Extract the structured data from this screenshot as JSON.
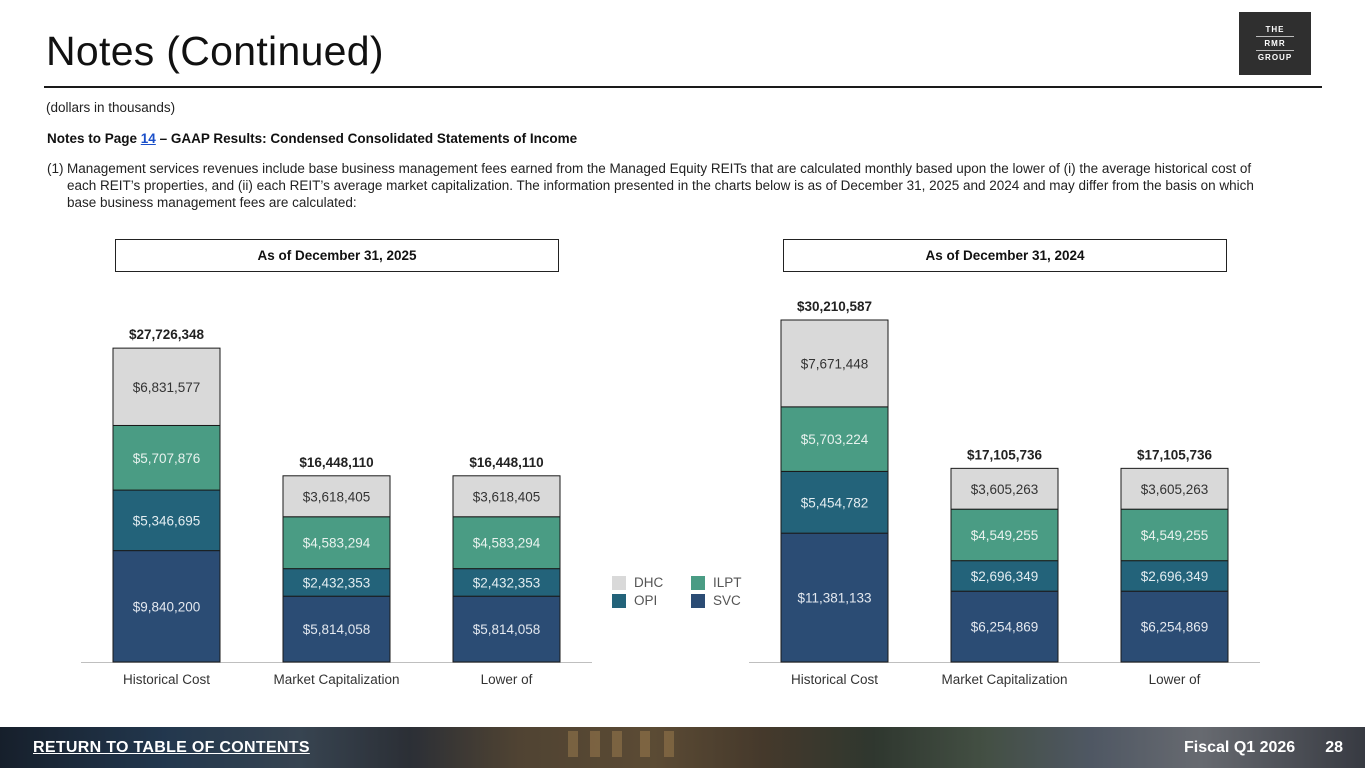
{
  "page": {
    "title": "Notes (Continued)",
    "subtitle": "(dollars in thousands)",
    "notes_heading_prefix": "Notes to Page ",
    "notes_heading_link": "14",
    "notes_heading_suffix": " – GAAP Results: Condensed Consolidated Statements of Income",
    "note_number": "(1)",
    "note_text": "Management services revenues include base business management fees earned from the Managed Equity REITs that are calculated monthly based upon the lower of (i) the average historical cost of each REIT’s properties, and (ii) each REIT’s average market capitalization. The information presented in the charts below is as of December 31, 2025 and 2024 and may differ from the basis on which base business management fees are calculated:"
  },
  "logo": {
    "line1": "THE",
    "line2": "RMR",
    "line3": "GROUP"
  },
  "colors": {
    "DHC": "#d9d9d9",
    "ILPT": "#4a9c84",
    "OPI": "#23637a",
    "SVC": "#2b4c74"
  },
  "legend": [
    "DHC",
    "ILPT",
    "OPI",
    "SVC"
  ],
  "chart_data": [
    {
      "type": "bar",
      "stacked": true,
      "title": "As of December 31, 2025",
      "categories": [
        "Historical Cost",
        "Market Capitalization",
        "Lower of"
      ],
      "totals": [
        "$27,726,348",
        "$16,448,110",
        "$16,448,110"
      ],
      "series": [
        {
          "name": "SVC",
          "values": [
            9840200,
            5814058,
            5814058
          ],
          "labels": [
            "$9,840,200",
            "$5,814,058",
            "$5,814,058"
          ]
        },
        {
          "name": "OPI",
          "values": [
            5346695,
            2432353,
            2432353
          ],
          "labels": [
            "$5,346,695",
            "$2,432,353",
            "$2,432,353"
          ]
        },
        {
          "name": "ILPT",
          "values": [
            5707876,
            4583294,
            4583294
          ],
          "labels": [
            "$5,707,876",
            "$4,583,294",
            "$4,583,294"
          ]
        },
        {
          "name": "DHC",
          "values": [
            6831577,
            3618405,
            3618405
          ],
          "labels": [
            "$6,831,577",
            "$3,618,405",
            "$3,618,405"
          ]
        }
      ]
    },
    {
      "type": "bar",
      "stacked": true,
      "title": "As of December 31, 2024",
      "categories": [
        "Historical Cost",
        "Market Capitalization",
        "Lower of"
      ],
      "totals": [
        "$30,210,587",
        "$17,105,736",
        "$17,105,736"
      ],
      "series": [
        {
          "name": "SVC",
          "values": [
            11381133,
            6254869,
            6254869
          ],
          "labels": [
            "$11,381,133",
            "$6,254,869",
            "$6,254,869"
          ]
        },
        {
          "name": "OPI",
          "values": [
            5454782,
            2696349,
            2696349
          ],
          "labels": [
            "$5,454,782",
            "$2,696,349",
            "$2,696,349"
          ]
        },
        {
          "name": "ILPT",
          "values": [
            5703224,
            4549255,
            4549255
          ],
          "labels": [
            "$5,703,224",
            "$4,549,255",
            "$4,549,255"
          ]
        },
        {
          "name": "DHC",
          "values": [
            7671448,
            3605263,
            3605263
          ],
          "labels": [
            "$7,671,448",
            "$3,605,263",
            "$3,605,263"
          ]
        }
      ]
    }
  ],
  "footer": {
    "link_label": "RETURN TO TABLE OF CONTENTS",
    "period": "Fiscal Q1 2026",
    "page_number": "28"
  }
}
